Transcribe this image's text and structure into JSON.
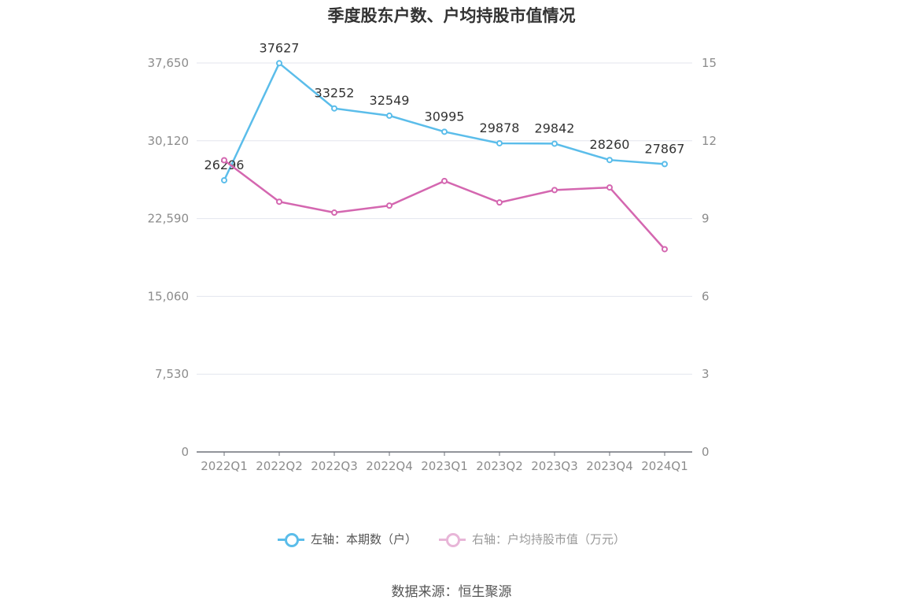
{
  "title": "季度股东户数、户均持股市值情况",
  "source": "数据来源：恒生聚源",
  "chart_data": {
    "type": "line",
    "title": "季度股东户数、户均持股市值情况",
    "categories": [
      "2022Q1",
      "2022Q2",
      "2022Q3",
      "2022Q4",
      "2023Q1",
      "2023Q2",
      "2023Q3",
      "2023Q4",
      "2024Q1"
    ],
    "left_axis": {
      "ylim": [
        0,
        37650
      ],
      "ticks": [
        "0",
        "7,530",
        "15,060",
        "22,590",
        "30,120",
        "37,650"
      ]
    },
    "right_axis": {
      "ylim": [
        0,
        15
      ],
      "ticks": [
        "0",
        "3",
        "6",
        "9",
        "12",
        "15"
      ]
    },
    "grid": true,
    "legend_position": "bottom",
    "series": [
      {
        "name": "左轴：本期数（户）",
        "axis": "left",
        "color": "#5bbdea",
        "values": [
          26296,
          37627,
          33252,
          32549,
          30995,
          29878,
          29842,
          28260,
          27867
        ],
        "labels": [
          "26296",
          "37627",
          "33252",
          "32549",
          "30995",
          "29878",
          "29842",
          "28260",
          "27867"
        ]
      },
      {
        "name": "右轴：户均持股市值（万元）",
        "axis": "right",
        "color": "#d467b0",
        "values": [
          11.25,
          9.65,
          9.23,
          9.5,
          10.45,
          9.62,
          10.1,
          10.2,
          7.82
        ]
      }
    ]
  }
}
